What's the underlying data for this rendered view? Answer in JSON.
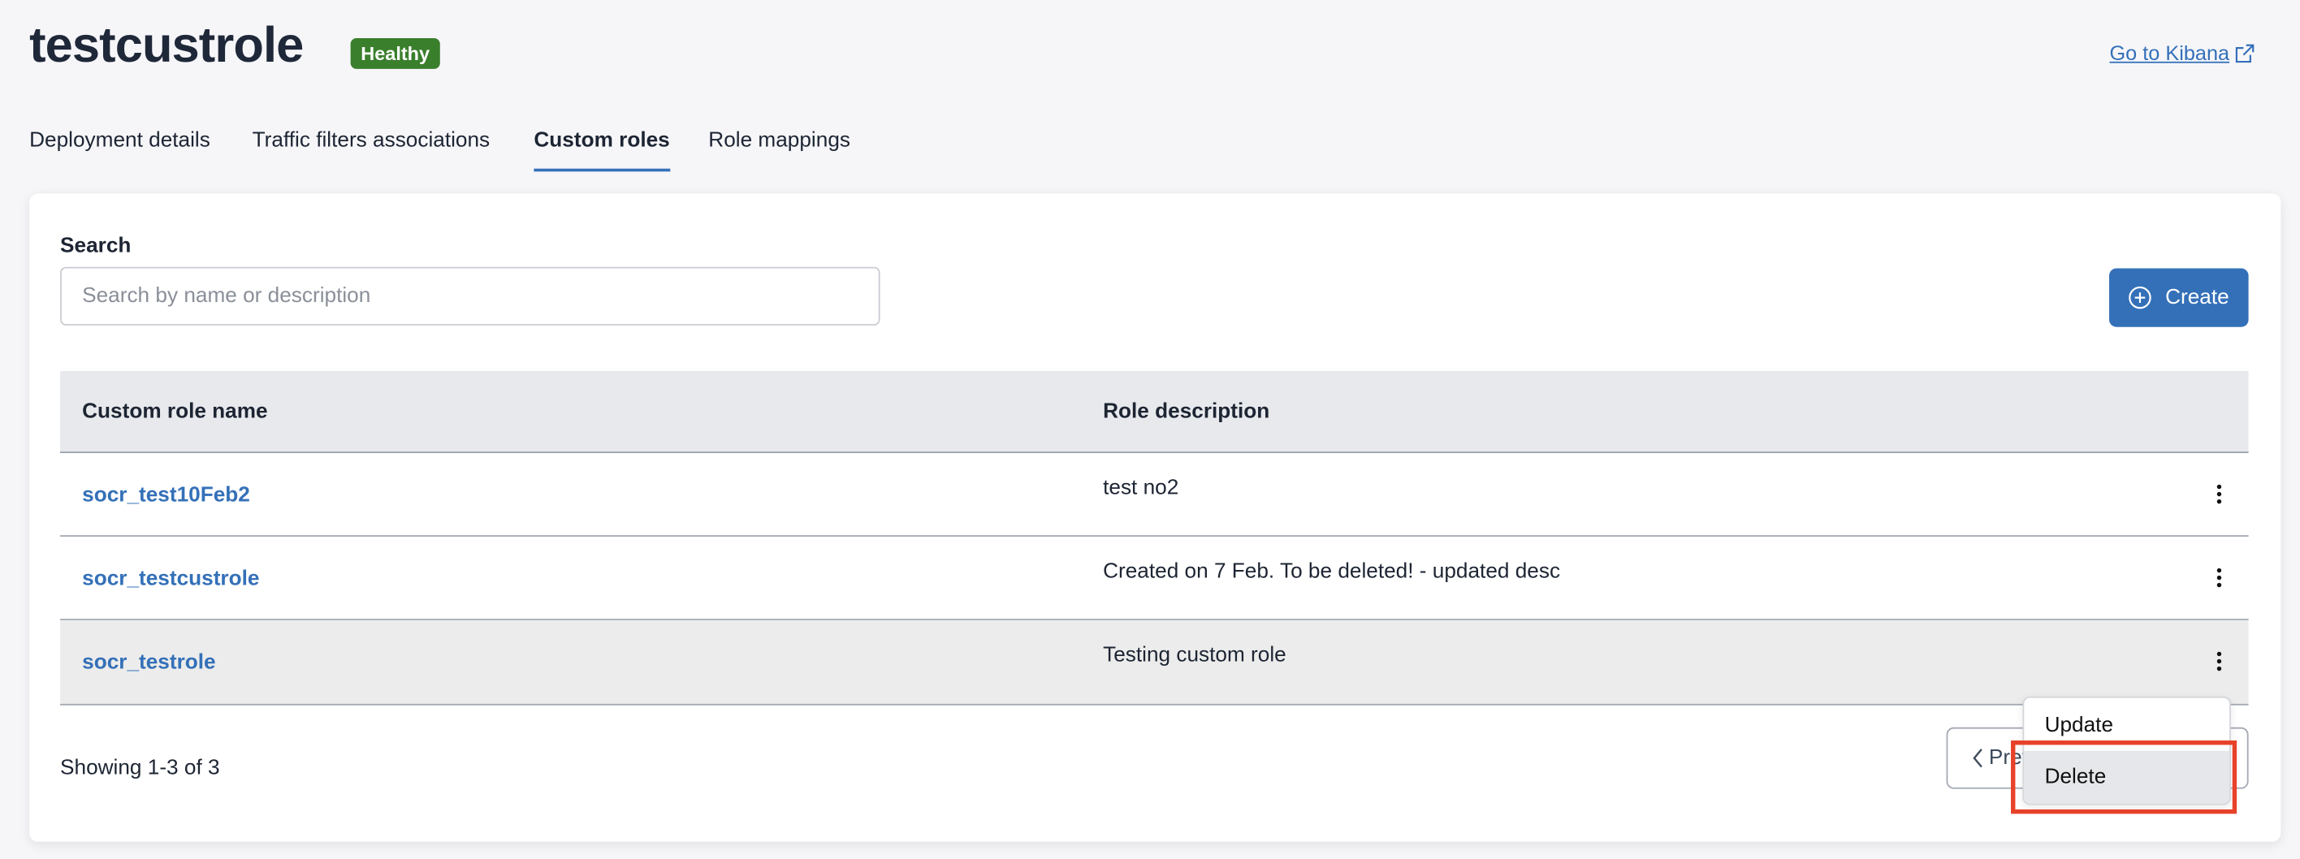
{
  "header": {
    "title": "testcustrole",
    "status_badge": "Healthy",
    "status_color": "#3a7f2c",
    "kibana_link": "Go to Kibana",
    "kibana_icon": "external-link-icon"
  },
  "tabs": [
    {
      "label": "Deployment details",
      "active": false
    },
    {
      "label": "Traffic filters associations",
      "active": false
    },
    {
      "label": "Custom roles",
      "active": true
    },
    {
      "label": "Role mappings",
      "active": false
    }
  ],
  "search": {
    "label": "Search",
    "placeholder": "Search by name or description",
    "value": ""
  },
  "create_button": {
    "label": "Create",
    "icon": "plus-circle-icon",
    "color": "#3470b8"
  },
  "table": {
    "columns": [
      "Custom role name",
      "Role description"
    ],
    "rows": [
      {
        "name": "socr_test10Feb2",
        "description": "test no2"
      },
      {
        "name": "socr_testcustrole",
        "description": "Created on 7 Feb. To be deleted! - updated desc"
      },
      {
        "name": "socr_testrole",
        "description": "Testing custom role"
      }
    ]
  },
  "footer": {
    "showing": "Showing 1-3 of 3",
    "prev_label": "Prev"
  },
  "row_menu": {
    "items": [
      "Update",
      "Delete"
    ],
    "highlighted": "Delete"
  },
  "highlight_color": "#e8412a"
}
